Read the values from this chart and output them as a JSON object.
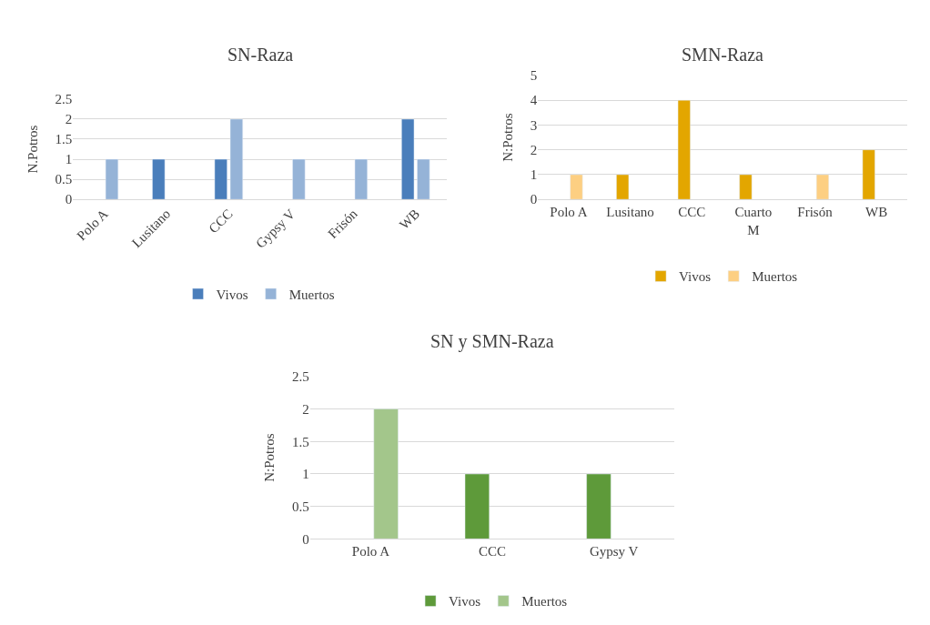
{
  "chart_data": [
    {
      "type": "bar",
      "title": "SN-Raza",
      "ylabel": "N.Potros",
      "categories": [
        "Polo A",
        "Lusitano",
        "CCC",
        "Gypsy V",
        "Frisón",
        "WB"
      ],
      "series": [
        {
          "name": "Vivos",
          "color": "#4a7ebb",
          "values": [
            null,
            1,
            1,
            null,
            null,
            2
          ]
        },
        {
          "name": "Muertos",
          "color": "#95b3d7",
          "values": [
            1,
            null,
            2,
            1,
            1,
            1
          ]
        }
      ],
      "ylim": [
        0,
        2.5
      ],
      "yticks": [
        0,
        0.5,
        1,
        1.5,
        2,
        2.5
      ],
      "grid": "y",
      "legend": "bottom"
    },
    {
      "type": "bar",
      "title": "SMN-Raza",
      "ylabel": "N:Potros",
      "categories": [
        "Polo A",
        "Lusitano",
        "CCC",
        "Cuarto M",
        "Frisón",
        "WB"
      ],
      "series": [
        {
          "name": "Vivos",
          "color": "#e3a600",
          "values": [
            null,
            1,
            4,
            1,
            null,
            2
          ]
        },
        {
          "name": "Muertos",
          "color": "#fdcf82",
          "values": [
            1,
            null,
            null,
            null,
            1,
            null
          ]
        }
      ],
      "ylim": [
        0,
        5
      ],
      "yticks": [
        0,
        1,
        2,
        3,
        4,
        5
      ],
      "grid": "y",
      "legend": "bottom"
    },
    {
      "type": "bar",
      "title": "SN y SMN-Raza",
      "ylabel": "N:Potros",
      "categories": [
        "Polo A",
        "CCC",
        "Gypsy V"
      ],
      "series": [
        {
          "name": "Vivos",
          "color": "#5e9a3a",
          "values": [
            null,
            1,
            1
          ]
        },
        {
          "name": "Muertos",
          "color": "#a3c68b",
          "values": [
            2,
            null,
            null
          ]
        }
      ],
      "ylim": [
        0,
        2.5
      ],
      "yticks": [
        0,
        0.5,
        1,
        1.5,
        2,
        2.5
      ],
      "grid": "y",
      "legend": "bottom"
    }
  ]
}
